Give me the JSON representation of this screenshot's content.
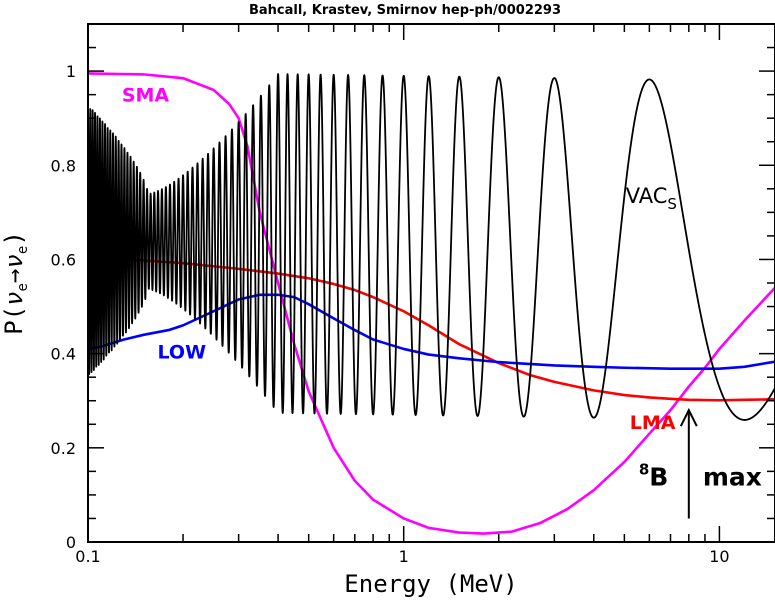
{
  "chart_data": {
    "type": "line",
    "title": "Bahcall, Krastev, Smirnov hep-ph/0002293",
    "xlabel": "Energy (MeV)",
    "ylabel": {
      "main": "P(",
      "nu1": "ν",
      "sub1": "e",
      "arrow": "→",
      "nu2": "ν",
      "sub2": "e",
      "close": ")"
    },
    "xscale": "log",
    "xlim": [
      0.1,
      15
    ],
    "ylim": [
      0,
      1.1
    ],
    "x_ticks": [
      {
        "value": 0.1,
        "label": "0.1"
      },
      {
        "value": 1,
        "label": "1"
      },
      {
        "value": 10,
        "label": "10"
      }
    ],
    "y_ticks": [
      {
        "value": 0,
        "label": "0"
      },
      {
        "value": 0.2,
        "label": "0.2"
      },
      {
        "value": 0.4,
        "label": "0.4"
      },
      {
        "value": 0.6,
        "label": "0.6"
      },
      {
        "value": 0.8,
        "label": "0.8"
      },
      {
        "value": 1,
        "label": "1"
      }
    ],
    "series": [
      {
        "name": "SMA",
        "color": "#ff00ff",
        "x": [
          0.1,
          0.15,
          0.2,
          0.25,
          0.28,
          0.3,
          0.32,
          0.35,
          0.4,
          0.45,
          0.5,
          0.6,
          0.7,
          0.8,
          1.0,
          1.2,
          1.5,
          1.8,
          2.2,
          2.7,
          3.3,
          4.0,
          5.0,
          6.0,
          7.0,
          8.0,
          9.0,
          10,
          12,
          15
        ],
        "y": [
          0.995,
          0.993,
          0.985,
          0.96,
          0.93,
          0.9,
          0.84,
          0.7,
          0.55,
          0.42,
          0.32,
          0.2,
          0.13,
          0.09,
          0.05,
          0.03,
          0.02,
          0.018,
          0.022,
          0.04,
          0.07,
          0.11,
          0.17,
          0.23,
          0.28,
          0.33,
          0.37,
          0.41,
          0.47,
          0.54
        ],
        "label_pos": {
          "x": 0.128,
          "y": 0.935
        }
      },
      {
        "name": "LMA",
        "color": "#ff0000",
        "x": [
          0.1,
          0.15,
          0.2,
          0.3,
          0.4,
          0.5,
          0.6,
          0.7,
          0.8,
          1.0,
          1.2,
          1.5,
          2.0,
          2.5,
          3.0,
          4.0,
          5.0,
          6.0,
          7.0,
          8.0,
          10,
          12,
          15
        ],
        "y": [
          0.6,
          0.598,
          0.592,
          0.58,
          0.57,
          0.56,
          0.548,
          0.535,
          0.52,
          0.49,
          0.46,
          0.42,
          0.38,
          0.355,
          0.34,
          0.322,
          0.312,
          0.307,
          0.304,
          0.302,
          0.301,
          0.302,
          0.303
        ],
        "label_pos": {
          "x": 5.2,
          "y": 0.24
        }
      },
      {
        "name": "LOW",
        "color": "#0000ff",
        "x": [
          0.1,
          0.11,
          0.13,
          0.15,
          0.18,
          0.2,
          0.25,
          0.3,
          0.35,
          0.4,
          0.45,
          0.5,
          0.6,
          0.7,
          0.8,
          1.0,
          1.2,
          1.5,
          2.0,
          3.0,
          4.0,
          5.0,
          7.0,
          10,
          12,
          15
        ],
        "y": [
          0.41,
          0.415,
          0.43,
          0.44,
          0.45,
          0.46,
          0.49,
          0.515,
          0.525,
          0.525,
          0.52,
          0.505,
          0.475,
          0.45,
          0.43,
          0.41,
          0.398,
          0.39,
          0.382,
          0.375,
          0.372,
          0.37,
          0.368,
          0.368,
          0.372,
          0.383
        ],
        "label_pos": {
          "x": 0.166,
          "y": 0.39
        }
      },
      {
        "name": "VAC",
        "name_sub": "S",
        "color": "#000000",
        "label_pos": {
          "x": 5.05,
          "y": 0.72
        }
      }
    ],
    "annotation": {
      "sup": "8",
      "text": "B",
      "max": "max",
      "x": 8.0,
      "arrow_from": 0.05,
      "arrow_to": 0.28
    }
  }
}
